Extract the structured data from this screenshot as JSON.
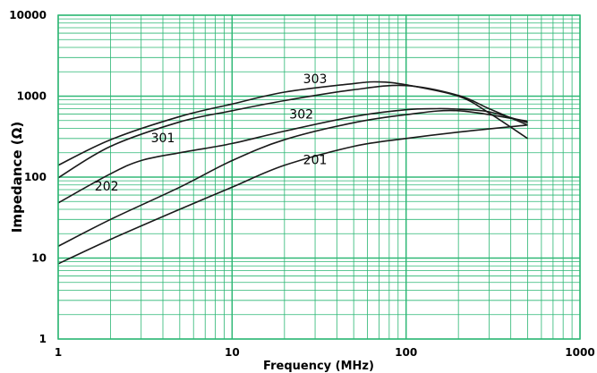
{
  "chart_data": {
    "type": "line",
    "xlabel": "Frequency (MHz)",
    "ylabel": "Impedance (Ω)",
    "x_scale": "log",
    "y_scale": "log",
    "xlim": [
      1,
      1000
    ],
    "ylim": [
      1,
      10000
    ],
    "x_ticks": [
      "1",
      "10",
      "100",
      "1000"
    ],
    "y_ticks": [
      "1",
      "10",
      "100",
      "1000",
      "10000"
    ],
    "grid": true,
    "grid_color": "#2bb673",
    "series": [
      {
        "name": "201",
        "x": [
          1,
          2,
          5,
          10,
          20,
          50,
          100,
          200,
          500
        ],
        "y": [
          8.5,
          17,
          40,
          75,
          140,
          240,
          300,
          360,
          440
        ]
      },
      {
        "name": "202",
        "x": [
          1,
          2,
          5,
          10,
          20,
          50,
          100,
          200,
          500
        ],
        "y": [
          14,
          30,
          75,
          160,
          290,
          470,
          590,
          660,
          490
        ]
      },
      {
        "name": "301",
        "x": [
          1,
          2,
          3,
          5,
          10,
          20,
          50,
          100,
          150,
          200,
          300,
          500
        ],
        "y": [
          48,
          110,
          160,
          200,
          260,
          370,
          560,
          680,
          700,
          690,
          640,
          470
        ]
      },
      {
        "name": "302",
        "x": [
          1,
          2,
          5,
          10,
          20,
          50,
          100,
          200,
          300,
          500
        ],
        "y": [
          98,
          240,
          480,
          660,
          880,
          1200,
          1350,
          1020,
          700,
          440
        ]
      },
      {
        "name": "303",
        "x": [
          1,
          2,
          5,
          10,
          20,
          50,
          70,
          100,
          200,
          300,
          500
        ],
        "y": [
          140,
          290,
          560,
          800,
          1120,
          1430,
          1500,
          1380,
          1000,
          620,
          300
        ]
      }
    ],
    "annotations": [
      {
        "text": "303",
        "x": 30,
        "y": 1650
      },
      {
        "text": "302",
        "x": 25,
        "y": 600
      },
      {
        "text": "301",
        "x": 4,
        "y": 305
      },
      {
        "text": "202",
        "x": 1.9,
        "y": 78
      },
      {
        "text": "201",
        "x": 30,
        "y": 165
      }
    ]
  }
}
